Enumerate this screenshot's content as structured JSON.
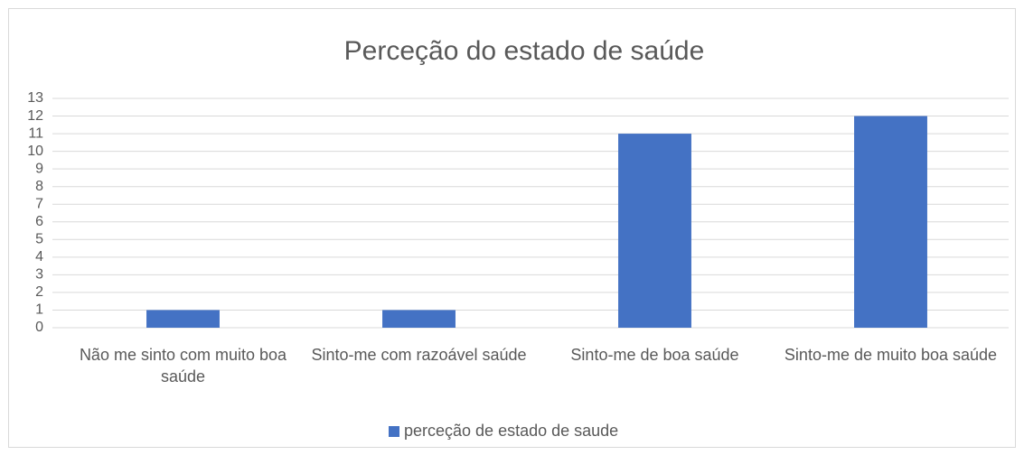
{
  "chart_data": {
    "type": "bar",
    "title": "Perceção do estado de saúde",
    "categories": [
      "Não me sinto com muito boa saúde",
      "Sinto-me com razoável saúde",
      "Sinto-me de boa saúde",
      "Sinto-me de muito boa saúde"
    ],
    "series": [
      {
        "name": "perceção de estado de saude",
        "color": "#4472c4",
        "values": [
          1,
          1,
          11,
          12
        ]
      }
    ],
    "ylim": [
      0,
      13
    ],
    "yticks": [
      0,
      1,
      2,
      3,
      4,
      5,
      6,
      7,
      8,
      9,
      10,
      11,
      12,
      13
    ],
    "grid": true,
    "legend": "bottom"
  }
}
